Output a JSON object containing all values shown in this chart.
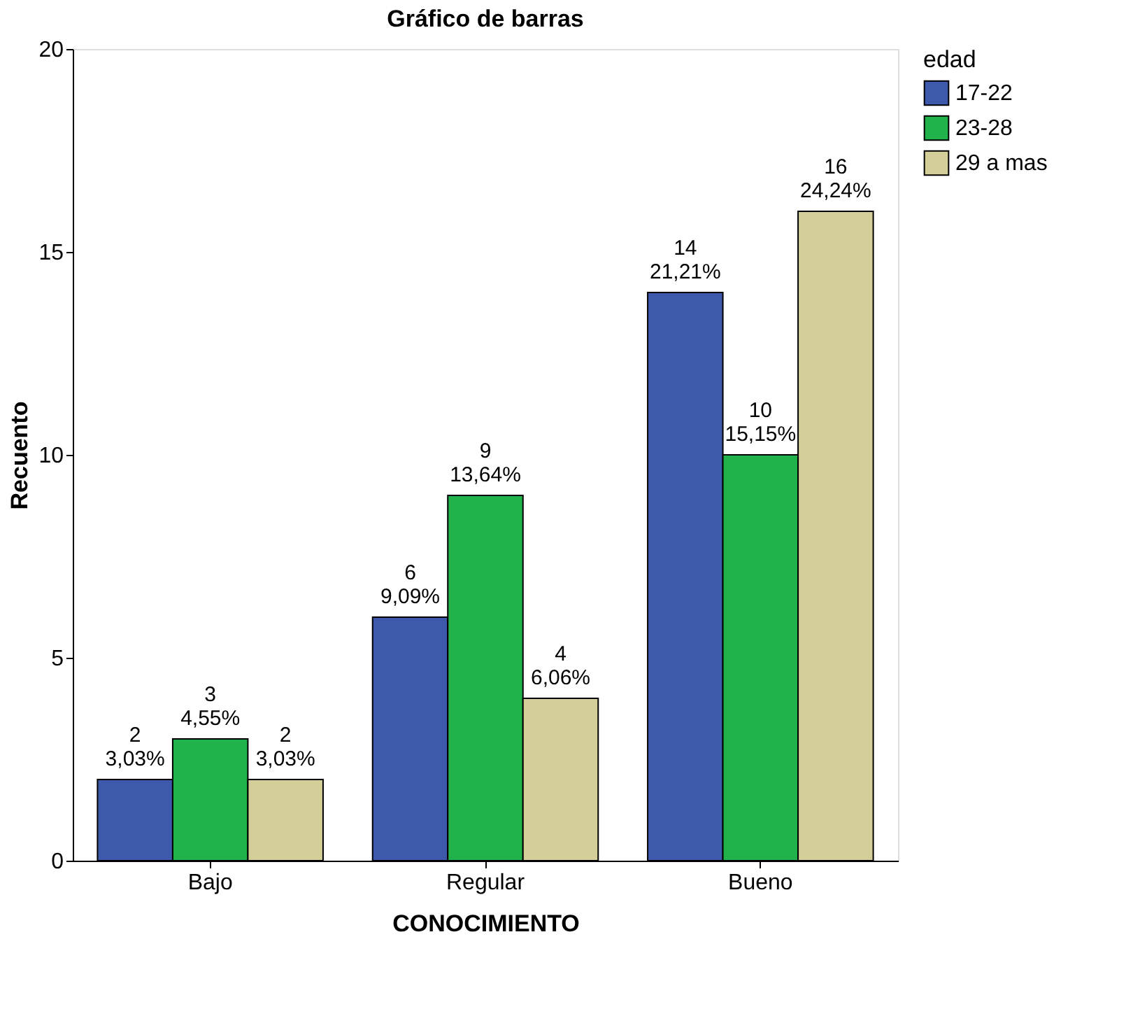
{
  "chart_data": {
    "type": "bar",
    "title": "Gráfico de barras",
    "xlabel": "CONOCIMIENTO",
    "ylabel": "Recuento",
    "legend_title": "edad",
    "categories": [
      "Bajo",
      "Regular",
      "Bueno"
    ],
    "series": [
      {
        "name": "17-22",
        "color": "#3e58ac",
        "values": [
          2,
          6,
          14
        ],
        "value_labels": [
          "2\n3,03%",
          "6\n9,09%",
          "14\n21,21%"
        ]
      },
      {
        "name": "23-28",
        "color": "#22b24c",
        "values": [
          3,
          9,
          10
        ],
        "value_labels": [
          "3\n4,55%",
          "9\n13,64%",
          "10\n15,15%"
        ]
      },
      {
        "name": "29 a mas",
        "color": "#d4cf98",
        "values": [
          2,
          4,
          16
        ],
        "value_labels": [
          "2\n3,03%",
          "4\n6,06%",
          "16\n24,24%"
        ]
      }
    ],
    "ylim": [
      0,
      20
    ],
    "yticks": [
      0,
      5,
      10,
      15,
      20
    ],
    "grid": false,
    "legend": "top right"
  }
}
